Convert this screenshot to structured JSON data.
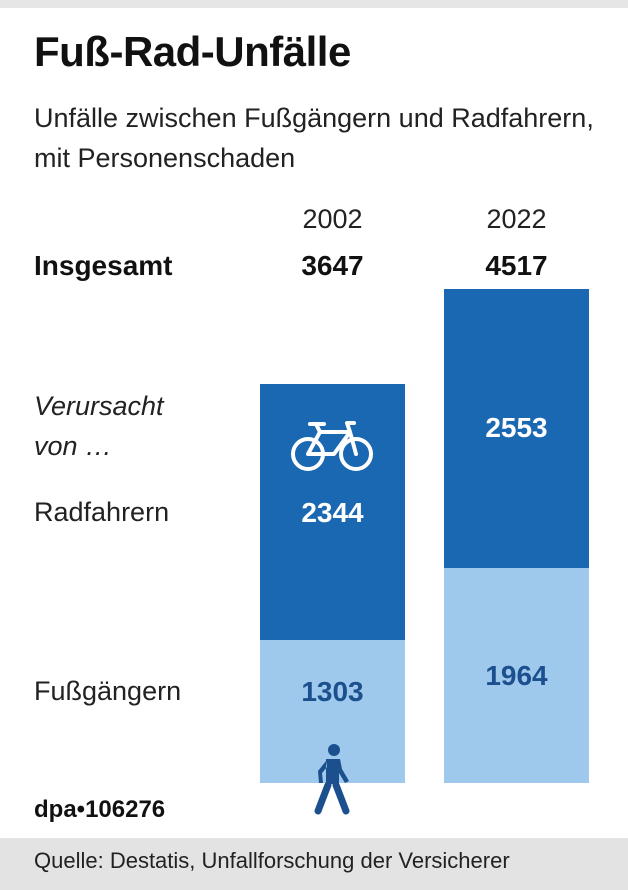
{
  "title": "Fuß-Rad-Unfälle",
  "subtitle": "Unfälle zwischen Fußgängern und Radfahrern, mit Personenschaden",
  "labels": {
    "total": "Insgesamt",
    "caused_by": "Verursacht von …",
    "cyclists": "Radfahrern",
    "pedestrians": "Fußgängern"
  },
  "colors": {
    "cyclists": "#1a68b2",
    "pedestrians": "#9fc9ec",
    "ped_text": "#1c4f8e"
  },
  "icons": {
    "cyclists": "bicycle-icon",
    "pedestrians": "pedestrian-icon"
  },
  "chart_data": {
    "type": "bar",
    "stacked": true,
    "categories": [
      "2002",
      "2022"
    ],
    "totals": [
      3647,
      4517
    ],
    "series": [
      {
        "name": "Fußgängern",
        "values": [
          1303,
          1964
        ]
      },
      {
        "name": "Radfahrern",
        "values": [
          2344,
          2553
        ]
      }
    ]
  },
  "credit": "dpa•106276",
  "source": "Quelle: Destatis, Unfallforschung der Versicherer"
}
